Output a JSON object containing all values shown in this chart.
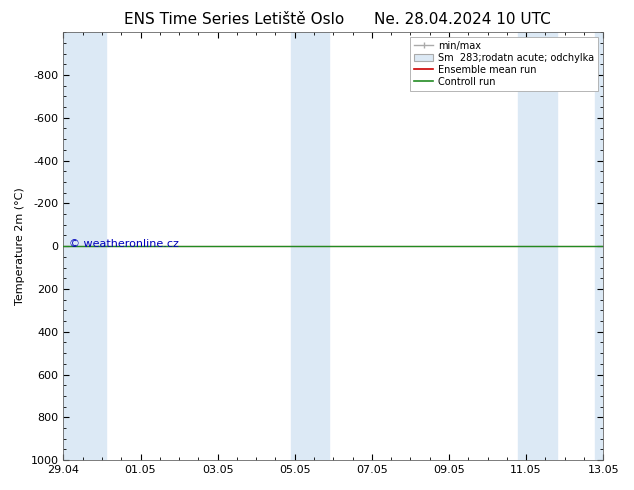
{
  "title": "ENS Time Series Letiště Oslo",
  "title2": "Ne. 28.04.2024 10 UTC",
  "ylabel": "Temperature 2m (°C)",
  "ylim_bottom": 1000,
  "ylim_top": -1000,
  "yticks": [
    -800,
    -600,
    -400,
    -200,
    0,
    200,
    400,
    600,
    800,
    1000
  ],
  "xtick_labels": [
    "29.04",
    "01.05",
    "03.05",
    "05.05",
    "07.05",
    "09.05",
    "11.05",
    "13.05"
  ],
  "xtick_positions": [
    0,
    2,
    4,
    6,
    8,
    10,
    12,
    14
  ],
  "total_days": 14,
  "bg_color": "#ffffff",
  "band_color": "#dce9f5",
  "unshaded_color": "#ffffff",
  "shaded_day_ranges": [
    [
      0,
      1.1
    ],
    [
      5.9,
      6.9
    ],
    [
      11.8,
      12.8
    ],
    [
      13.8,
      14.0
    ]
  ],
  "green_line_y": 0,
  "red_line_y": 0,
  "green_color": "#228b22",
  "red_color": "#cc0000",
  "watermark": "© weatheronline.cz",
  "watermark_color": "#0000bb",
  "watermark_fontsize": 8,
  "legend_label_minmax": "min/max",
  "legend_label_sm": "Sm  283;rodatn acute; odchylka",
  "legend_label_ensemble": "Ensemble mean run",
  "legend_label_control": "Controll run",
  "title_fontsize": 11,
  "ylabel_fontsize": 8,
  "tick_fontsize": 8,
  "legend_fontsize": 7
}
